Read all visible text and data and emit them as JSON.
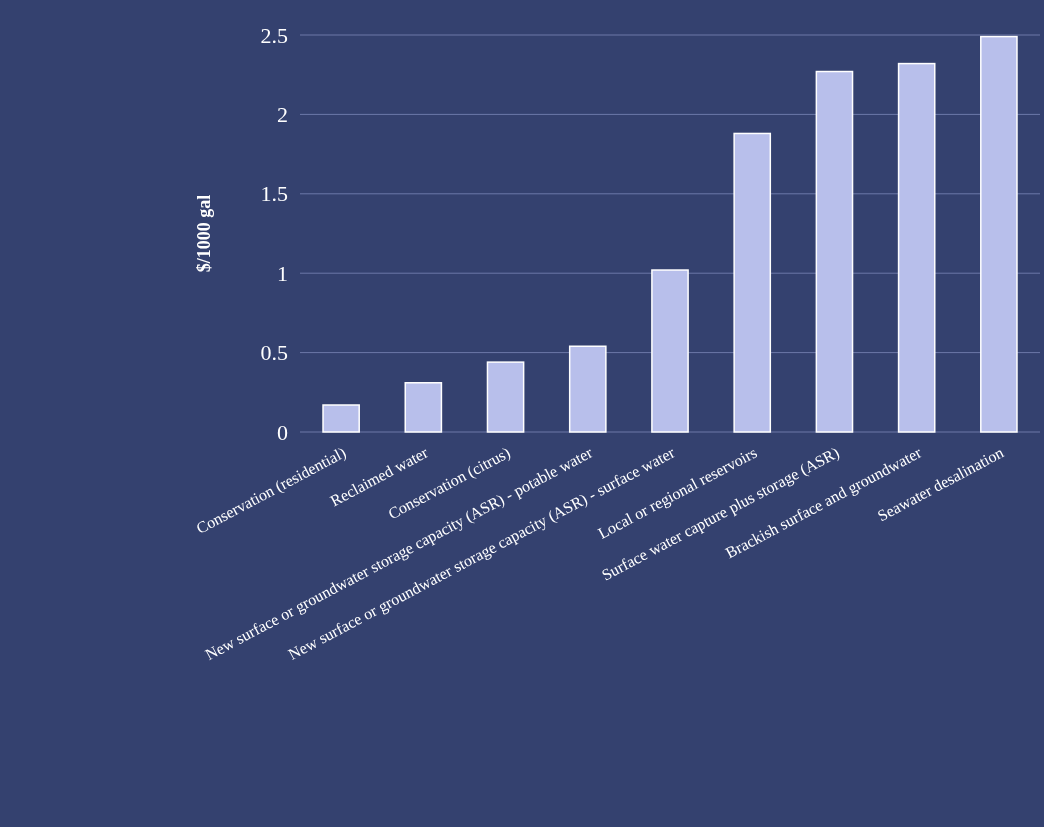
{
  "chart_data": {
    "type": "bar",
    "ylabel": "$/1000 gal",
    "categories": [
      "Conservation (residential)",
      "Reclaimed water",
      "Conservation (citrus)",
      "New surface or groundwater storage capacity (ASR) - potable water",
      "New surface or groundwater storage capacity (ASR) - surface water",
      "Local or regional reservoirs",
      "Surface water capture plus storage (ASR)",
      "Brackish surface and groundwater",
      "Seawater desalination"
    ],
    "values": [
      0.17,
      0.31,
      0.44,
      0.54,
      1.02,
      1.88,
      2.27,
      2.32,
      2.49
    ],
    "color": "#b8bfeb",
    "ylim": [
      0,
      2.5
    ],
    "yticks": [
      0,
      0.5,
      1,
      1.5,
      2,
      2.5
    ],
    "grid": "y"
  }
}
